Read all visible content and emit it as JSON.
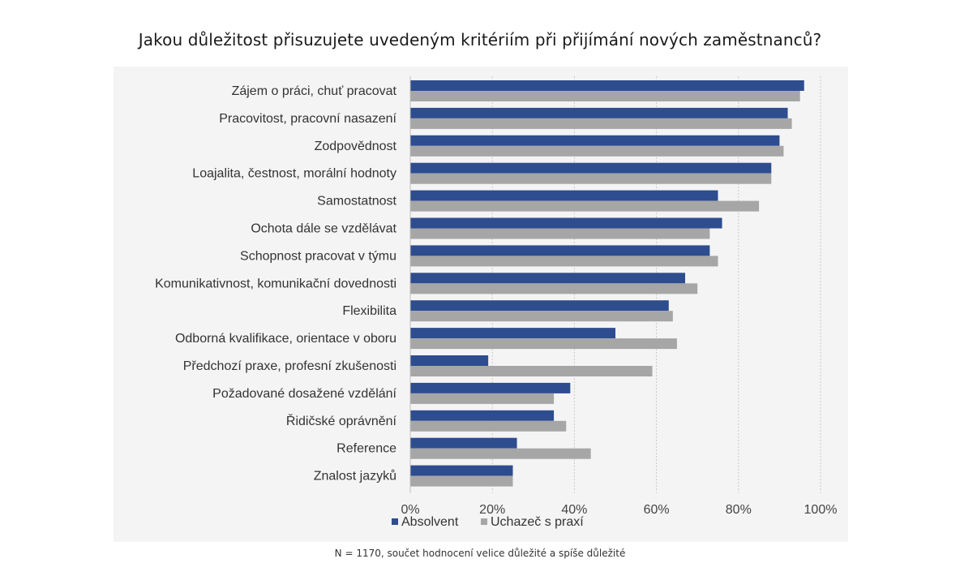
{
  "title": "Jakou důležitost přisuzujete uvedeným kritériím při přijímání nových zaměstnanců?",
  "footnote": "N = 1170, součet hodnocení velice důležité a spíše důležité",
  "colors": {
    "absolvent": "#2E4D8F",
    "uchazec": "#A6A6A6",
    "grid": "#C8C8C8",
    "panel": "#F4F4F4"
  },
  "chart_data": {
    "type": "bar",
    "orientation": "horizontal",
    "title": "",
    "xlabel": "",
    "ylabel": "",
    "xlim": [
      0,
      100
    ],
    "x_ticks": [
      "0%",
      "20%",
      "40%",
      "60%",
      "80%",
      "100%"
    ],
    "grid": "vertical dotted",
    "legend_position": "bottom",
    "categories": [
      "Zájem o práci, chuť pracovat",
      "Pracovitost, pracovní nasazení",
      "Zodpovědnost",
      "Loajalita, čestnost, morální hodnoty",
      "Samostatnost",
      "Ochota dále se vzdělávat",
      "Schopnost pracovat v týmu",
      "Komunikativnost, komunikační dovednosti",
      "Flexibilita",
      "Odborná kvalifikace, orientace v oboru",
      "Předchozí praxe, profesní zkušenosti",
      "Požadované dosažené vzdělání",
      "Řidičské oprávnění",
      "Reference",
      "Znalost jazyků"
    ],
    "series": [
      {
        "name": "Absolvent",
        "values": [
          96,
          92,
          90,
          88,
          75,
          76,
          73,
          67,
          63,
          50,
          19,
          39,
          35,
          26,
          25
        ]
      },
      {
        "name": "Uchazeč s praxí",
        "values": [
          95,
          93,
          91,
          88,
          85,
          73,
          75,
          70,
          64,
          65,
          59,
          35,
          38,
          44,
          25
        ]
      }
    ]
  }
}
